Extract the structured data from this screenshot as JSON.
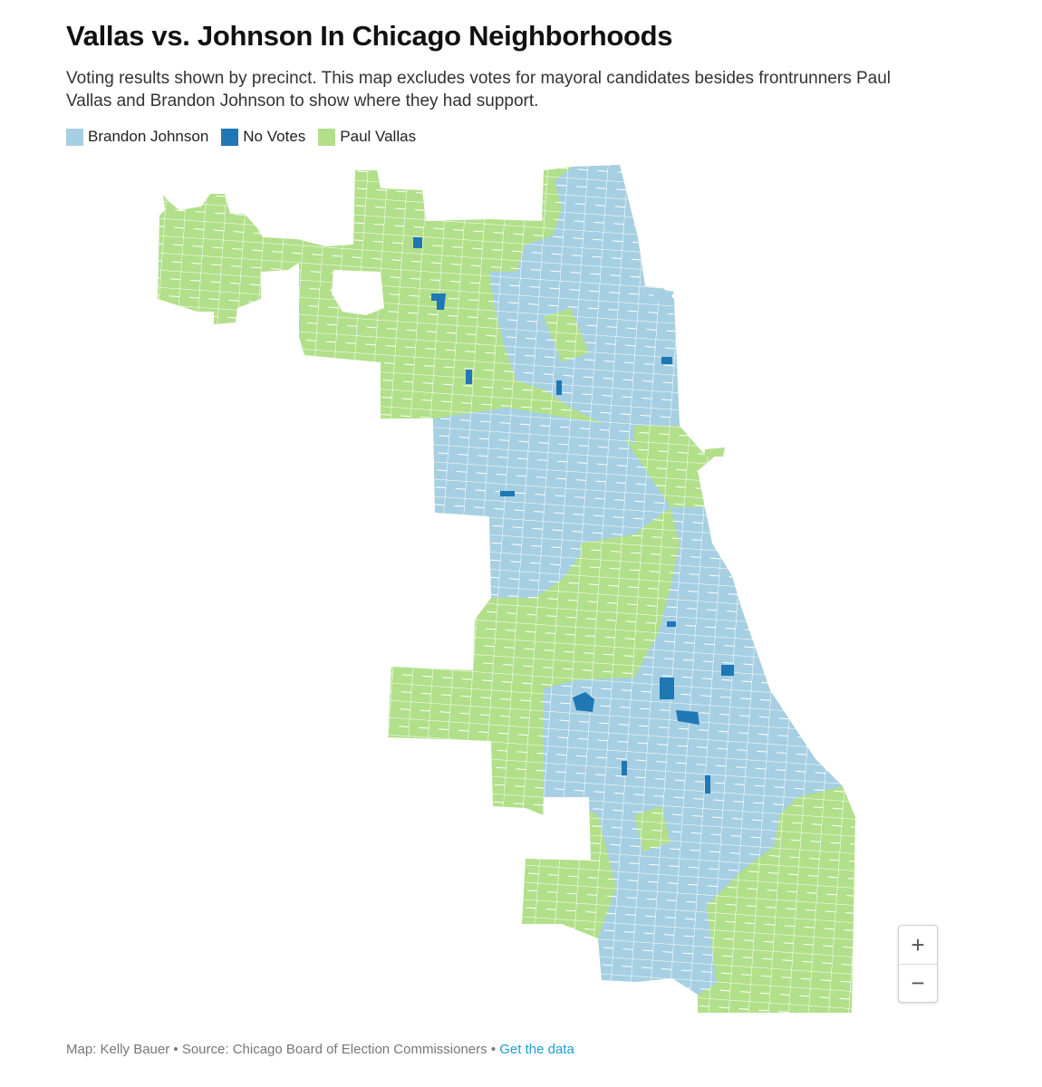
{
  "header": {
    "title": "Vallas vs. Johnson In Chicago Neighborhoods",
    "subtitle": "Voting results shown by precinct. This map excludes votes for mayoral candidates besides frontrunners Paul Vallas and Brandon Johnson to show where they had support."
  },
  "legend": {
    "items": [
      {
        "label": "Brandon Johnson",
        "color": "#a6cfe3"
      },
      {
        "label": "No Votes",
        "color": "#1f78b4"
      },
      {
        "label": "Paul Vallas",
        "color": "#b2df8a"
      }
    ]
  },
  "map": {
    "colors": {
      "johnson": "#a6cfe3",
      "no_votes": "#1f78b4",
      "vallas": "#b2df8a",
      "precinct_border": "#ffffff"
    }
  },
  "zoom": {
    "in_label": "+",
    "out_label": "−"
  },
  "footer": {
    "credit": "Map: Kelly Bauer",
    "separator": " • ",
    "source": "Source: Chicago Board of Election Commissioners",
    "link_label": "Get the data"
  }
}
